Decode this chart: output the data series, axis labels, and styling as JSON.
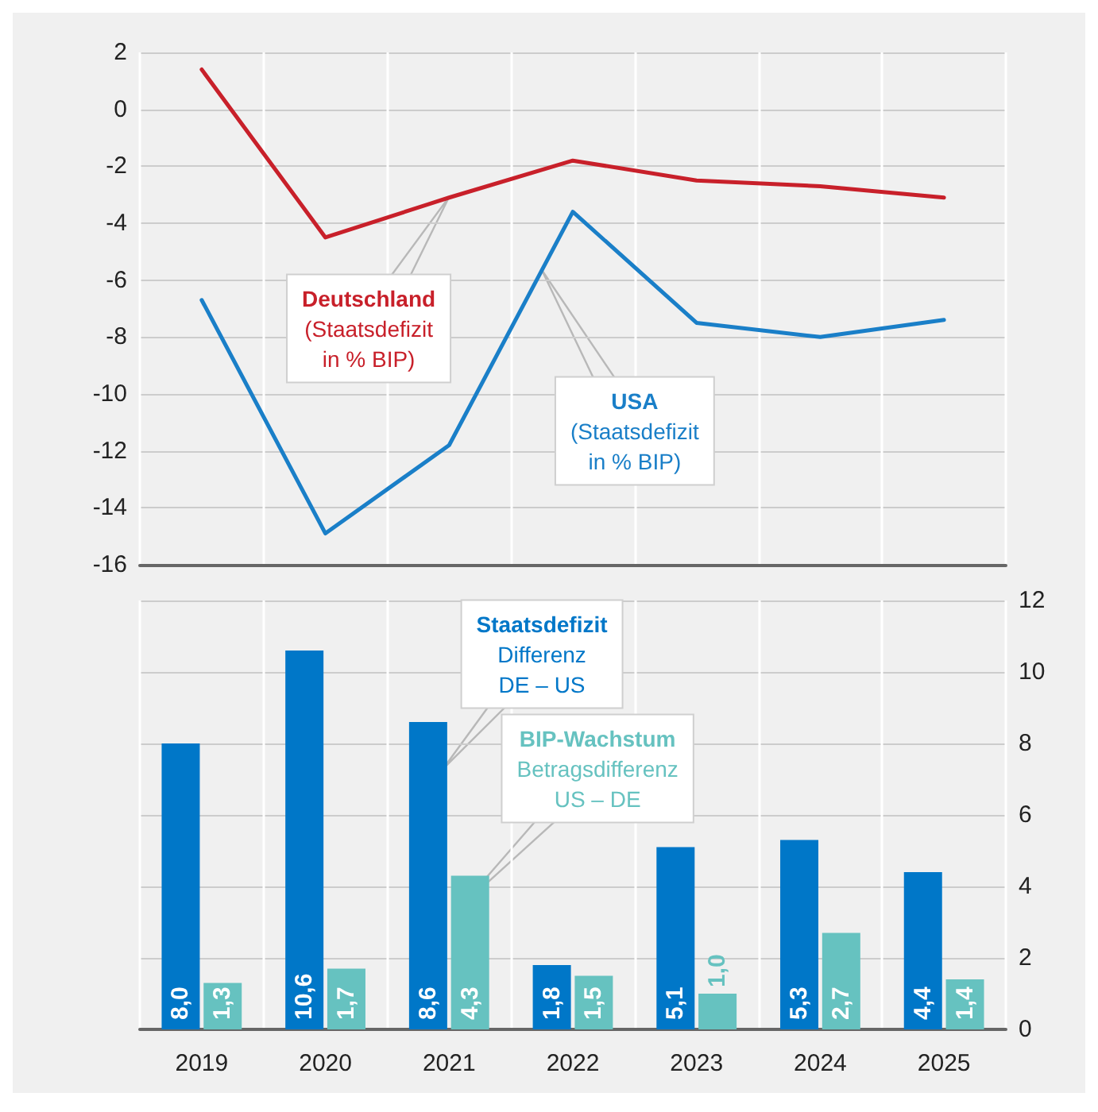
{
  "chart_data": [
    {
      "type": "line",
      "categories": [
        "2019",
        "2020",
        "2021",
        "2022",
        "2023",
        "2024",
        "2025"
      ],
      "ylim": [
        -16,
        2
      ],
      "yticks": [
        -16,
        -14,
        -12,
        -10,
        -8,
        -6,
        -4,
        -2,
        0,
        2
      ],
      "grid": true,
      "tick_labels": "y",
      "series": [
        {
          "name": "Deutschland (Staatsdefizit in % BIP)",
          "color": "#c8202a",
          "values": [
            1.4,
            -4.5,
            -3.1,
            -1.8,
            -2.5,
            -2.7,
            -3.1
          ]
        },
        {
          "name": "USA (Staatsdefizit in % BIP)",
          "color": "#1a7fc8",
          "values": [
            -6.7,
            -14.9,
            -11.8,
            -3.6,
            -7.5,
            -8.0,
            -7.4
          ]
        }
      ]
    },
    {
      "type": "bar",
      "categories": [
        "2019",
        "2020",
        "2021",
        "2022",
        "2023",
        "2024",
        "2025"
      ],
      "y2lim": [
        0,
        12
      ],
      "y2ticks": [
        0,
        2,
        4,
        6,
        8,
        10,
        12
      ],
      "grid": true,
      "series": [
        {
          "name": "Staatsdefizit Differenz DE – US",
          "color": "#0077c8",
          "axis": "y2",
          "values": [
            8.0,
            10.6,
            8.6,
            1.8,
            5.1,
            5.3,
            4.4
          ],
          "value_labels": [
            "8,0",
            "10,6",
            "8,6",
            "1,8",
            "5,1",
            "5,3",
            "4,4"
          ]
        },
        {
          "name": "BIP-Wachstum Betragsdifferenz US – DE",
          "color": "#66c2c0",
          "axis": "y2",
          "values": [
            1.3,
            1.7,
            4.3,
            1.5,
            1.0,
            2.7,
            1.4
          ],
          "value_labels": [
            "1,3",
            "1,7",
            "4,3",
            "1,5",
            "1,0",
            "2,7",
            "1,4"
          ]
        }
      ]
    }
  ]
}
